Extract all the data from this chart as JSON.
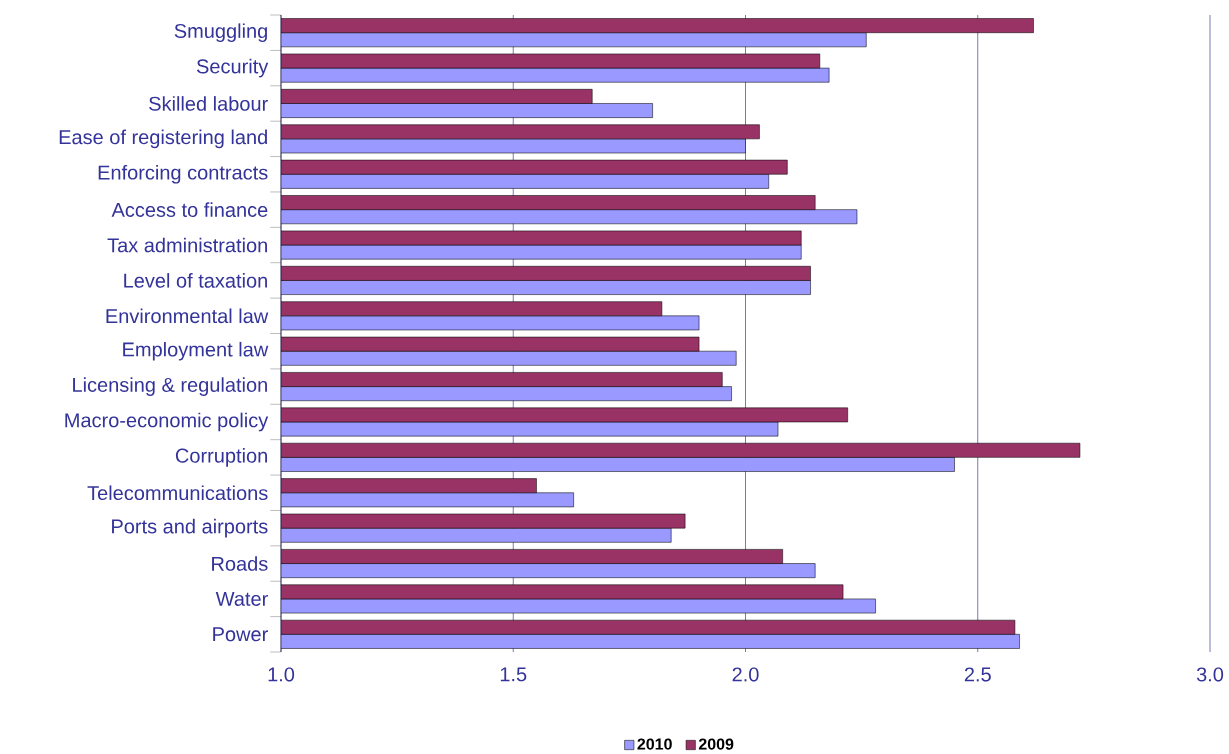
{
  "chart_data": {
    "type": "bar",
    "orientation": "horizontal",
    "categories": [
      "Smuggling",
      "Security",
      "Skilled labour",
      "Ease of registering land",
      "Enforcing contracts",
      "Access to finance",
      "Tax administration",
      "Level of taxation",
      "Environmental law",
      "Employment law",
      "Licensing & regulation",
      "Macro-economic policy",
      "Corruption",
      "Telecommunications",
      "Ports and airports",
      "Roads",
      "Water",
      "Power"
    ],
    "series": [
      {
        "name": "2010",
        "color": "#9999ff",
        "values": [
          2.26,
          2.18,
          1.8,
          2.0,
          2.05,
          2.24,
          2.12,
          2.14,
          1.9,
          1.98,
          1.97,
          2.07,
          2.45,
          1.63,
          1.84,
          2.15,
          2.28,
          2.59
        ]
      },
      {
        "name": "2009",
        "color": "#993366",
        "values": [
          2.62,
          2.16,
          1.67,
          2.03,
          2.09,
          2.15,
          2.12,
          2.14,
          1.82,
          1.9,
          1.95,
          2.22,
          2.72,
          1.55,
          1.87,
          2.08,
          2.21,
          2.58
        ]
      }
    ],
    "xlim": [
      1.0,
      3.0
    ],
    "xticks": [
      {
        "value": 1.0,
        "label": "1.0"
      },
      {
        "value": 1.5,
        "label": "1.5"
      },
      {
        "value": 2.0,
        "label": "2.0"
      },
      {
        "value": 2.5,
        "label": "2.5"
      },
      {
        "value": 3.0,
        "label": "3.0"
      }
    ],
    "grid": "x",
    "legend": "bottom"
  }
}
